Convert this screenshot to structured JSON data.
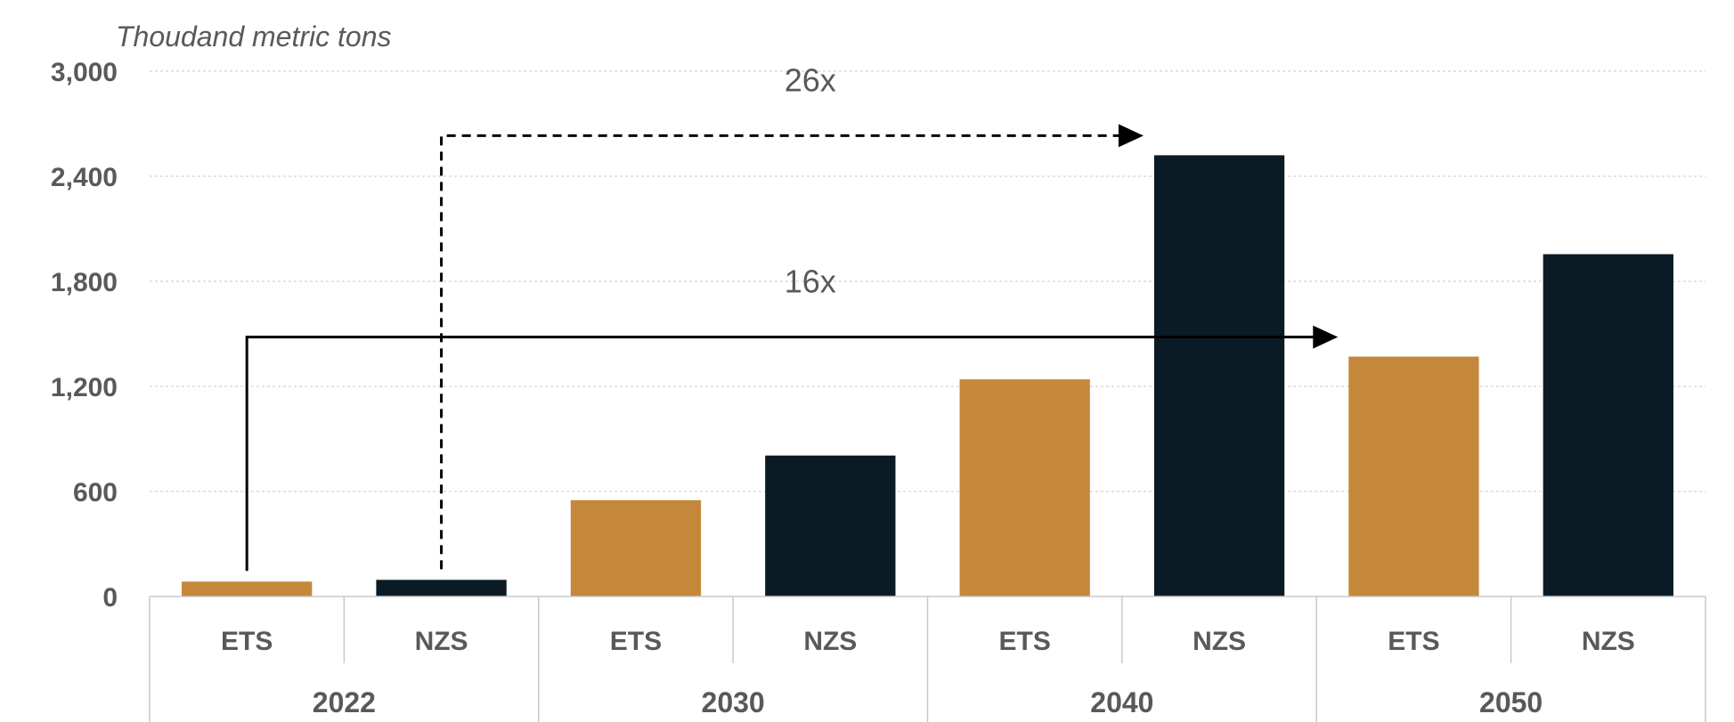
{
  "chart_data": {
    "type": "bar",
    "ylabel": "Thoudand metric tons",
    "ylim": [
      0,
      3000
    ],
    "yticks": [
      "0",
      "600",
      "1,200",
      "1,800",
      "2,400",
      "3,000"
    ],
    "groups": [
      "2022",
      "2030",
      "2040",
      "2050"
    ],
    "subcategories": [
      "ETS",
      "NZS"
    ],
    "colors": {
      "ETS": "#C5883A",
      "NZS": "#0B1B26"
    },
    "series": [
      {
        "name": "ETS",
        "values": [
          85,
          550,
          1240,
          1370
        ]
      },
      {
        "name": "NZS",
        "values": [
          95,
          805,
          2520,
          1955
        ]
      }
    ],
    "grid": true,
    "legend": "none",
    "annotations": [
      {
        "text": "26x",
        "style": "dashed",
        "from": "NZS 2022",
        "to": "NZS 2040"
      },
      {
        "text": "16x",
        "style": "solid",
        "from": "ETS 2022",
        "to": "ETS 2050"
      }
    ]
  }
}
